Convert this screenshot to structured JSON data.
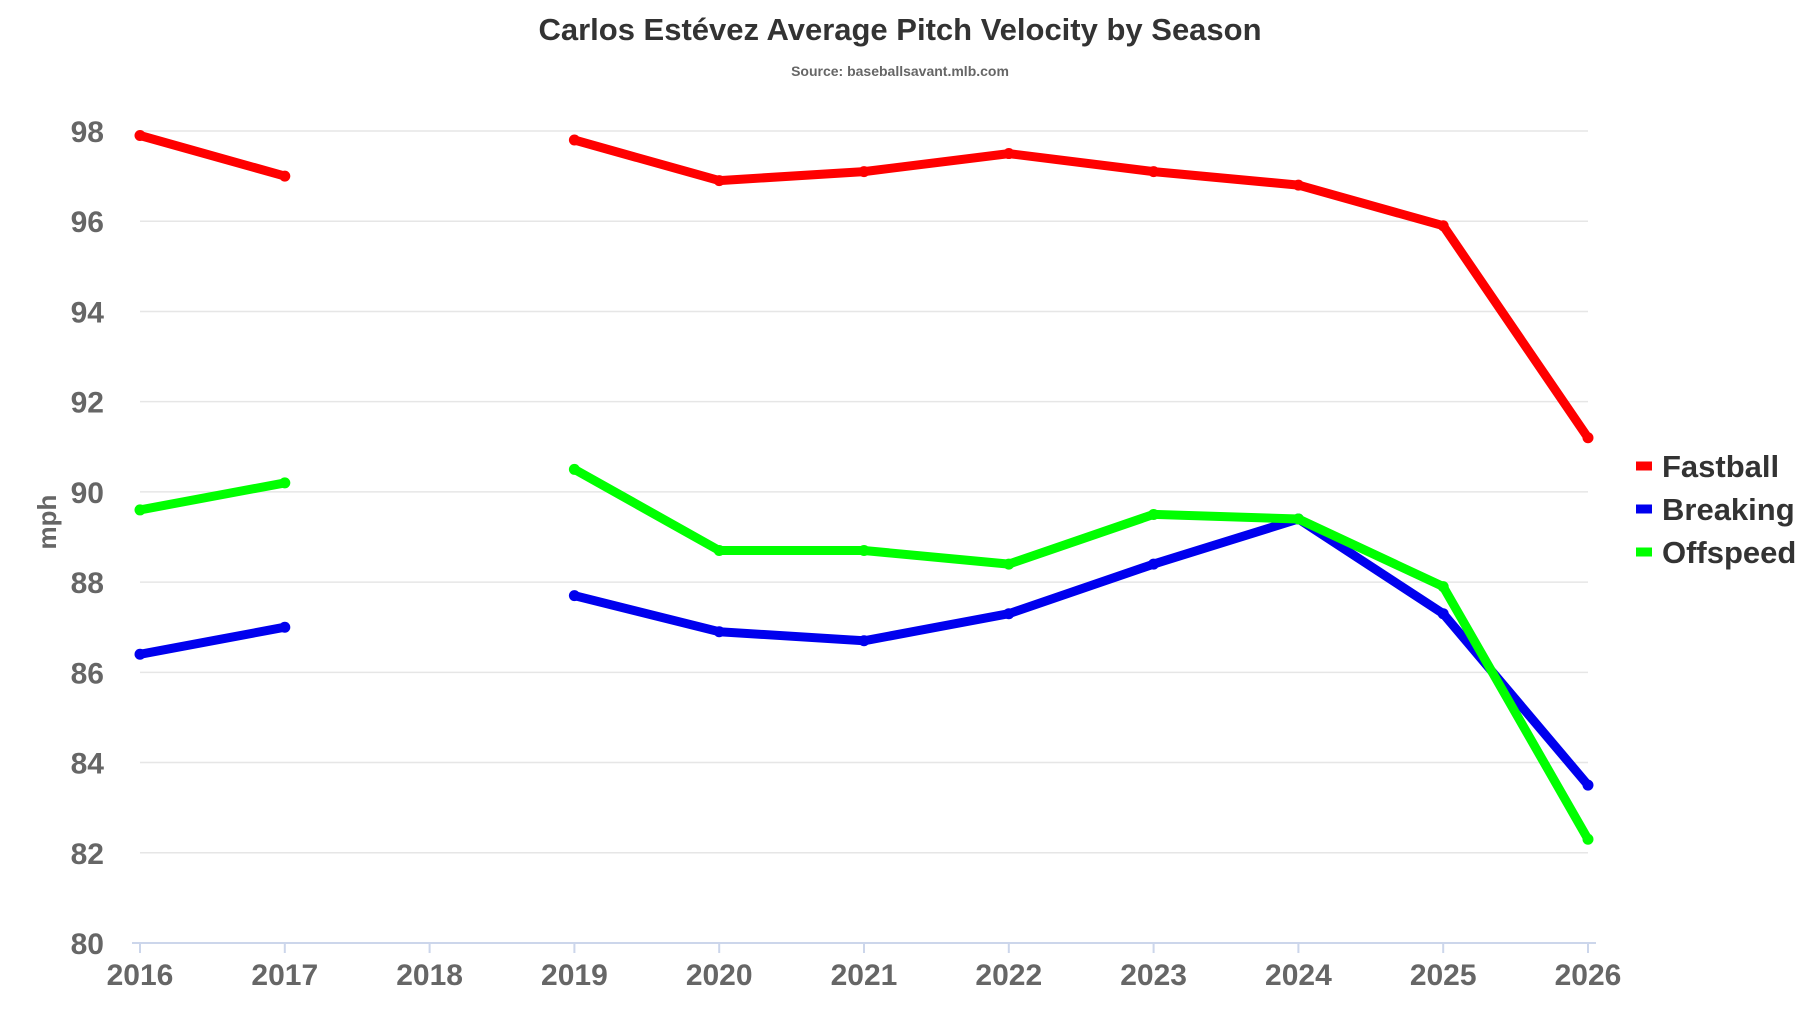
{
  "chart_data": {
    "type": "line",
    "title": "Carlos Estévez Average Pitch Velocity by Season",
    "subtitle": "Source: baseballsavant.mlb.com",
    "xlabel": "",
    "ylabel": "mph",
    "categories": [
      "2016",
      "2017",
      "2018",
      "2019",
      "2020",
      "2021",
      "2022",
      "2023",
      "2024",
      "2025",
      "2026"
    ],
    "ylim": [
      80,
      98
    ],
    "yticks": [
      80,
      82,
      84,
      86,
      88,
      90,
      92,
      94,
      96,
      98
    ],
    "grid": true,
    "legend_position": "right",
    "series": [
      {
        "name": "Fastball",
        "color": "#ff0000",
        "values": [
          97.9,
          97.0,
          null,
          97.8,
          96.9,
          97.1,
          97.5,
          97.1,
          96.8,
          95.9,
          91.2
        ]
      },
      {
        "name": "Breaking",
        "color": "#0000ee",
        "values": [
          86.4,
          87.0,
          null,
          87.7,
          86.9,
          86.7,
          87.3,
          88.4,
          89.4,
          87.3,
          83.5
        ]
      },
      {
        "name": "Offspeed",
        "color": "#00ff00",
        "values": [
          89.6,
          90.2,
          null,
          90.5,
          88.7,
          88.7,
          88.4,
          89.5,
          89.4,
          87.9,
          82.3
        ]
      }
    ]
  }
}
